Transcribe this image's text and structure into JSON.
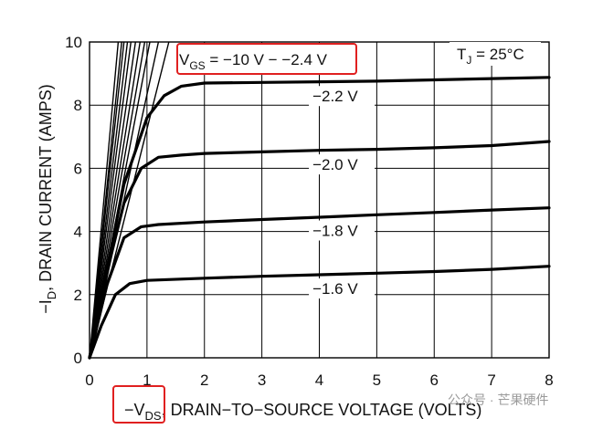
{
  "chart_data": {
    "type": "line",
    "title": "",
    "xlabel": "−V_DS, DRAIN−TO−SOURCE VOLTAGE (VOLTS)",
    "xlabel_parts": {
      "prefix": "−V",
      "sub": "DS",
      "suffix": ", DRAIN−TO−SOURCE VOLTAGE (VOLTS)"
    },
    "ylabel": "−I_D, DRAIN CURRENT (AMPS)",
    "ylabel_parts": {
      "prefix": "−I",
      "sub": "D",
      "suffix": ", DRAIN CURRENT (AMPS)"
    },
    "xlim": [
      0,
      8
    ],
    "ylim": [
      0,
      10
    ],
    "xticks": [
      "0",
      "1",
      "2",
      "3",
      "4",
      "5",
      "6",
      "7",
      "8"
    ],
    "yticks": [
      "0",
      "2",
      "4",
      "6",
      "8",
      "10"
    ],
    "grid": true,
    "annotations": {
      "vgs_range": {
        "prefix": "V",
        "sub": "GS",
        "suffix": " = −10 V − −2.4 V"
      },
      "temperature": {
        "prefix": "T",
        "sub": "J",
        "suffix": " = 25°C"
      }
    },
    "highlight_color": "#e02020",
    "series": [
      {
        "name": "−2.2 V",
        "x": [
          0,
          0.3,
          0.6,
          1.0,
          1.3,
          1.6,
          2.0,
          3.0,
          4.0,
          5.0,
          6.0,
          7.0,
          8.0
        ],
        "y": [
          0,
          2.8,
          5.5,
          7.6,
          8.3,
          8.6,
          8.7,
          8.72,
          8.74,
          8.76,
          8.8,
          8.84,
          8.88
        ]
      },
      {
        "name": "−2.0 V",
        "x": [
          0,
          0.3,
          0.6,
          0.9,
          1.2,
          1.6,
          2.0,
          3.0,
          4.0,
          5.0,
          6.0,
          7.0,
          8.0
        ],
        "y": [
          0,
          2.7,
          4.9,
          6.0,
          6.35,
          6.42,
          6.47,
          6.52,
          6.57,
          6.6,
          6.65,
          6.72,
          6.85
        ]
      },
      {
        "name": "−1.8 V",
        "x": [
          0,
          0.3,
          0.6,
          0.9,
          1.2,
          2.0,
          3.0,
          4.0,
          5.0,
          6.0,
          7.0,
          8.0
        ],
        "y": [
          0,
          2.3,
          3.8,
          4.15,
          4.22,
          4.3,
          4.38,
          4.45,
          4.53,
          4.6,
          4.68,
          4.75
        ]
      },
      {
        "name": "−1.6 V",
        "x": [
          0,
          0.2,
          0.45,
          0.7,
          1.0,
          2.0,
          3.0,
          4.0,
          5.0,
          6.0,
          7.0,
          8.0
        ],
        "y": [
          0,
          1.0,
          2.0,
          2.35,
          2.45,
          2.52,
          2.58,
          2.63,
          2.68,
          2.73,
          2.8,
          2.9
        ]
      },
      {
        "name": "",
        "x": [
          0,
          0.5
        ],
        "y": [
          0,
          10
        ]
      },
      {
        "name": "",
        "x": [
          0,
          0.56
        ],
        "y": [
          0,
          10
        ]
      },
      {
        "name": "",
        "x": [
          0,
          0.6
        ],
        "y": [
          0,
          10
        ]
      },
      {
        "name": "",
        "x": [
          0,
          0.66
        ],
        "y": [
          0,
          10
        ]
      },
      {
        "name": "",
        "x": [
          0,
          0.72
        ],
        "y": [
          0,
          10
        ]
      },
      {
        "name": "",
        "x": [
          0,
          0.8
        ],
        "y": [
          0,
          10
        ]
      },
      {
        "name": "",
        "x": [
          0,
          0.88
        ],
        "y": [
          0,
          10
        ]
      },
      {
        "name": "",
        "x": [
          0,
          0.96
        ],
        "y": [
          0,
          10
        ]
      },
      {
        "name": "",
        "x": [
          0,
          1.05
        ],
        "y": [
          0,
          10
        ]
      },
      {
        "name": "",
        "x": [
          0,
          1.2
        ],
        "y": [
          0,
          10
        ]
      },
      {
        "name": "",
        "x": [
          0,
          1.38
        ],
        "y": [
          0,
          10
        ]
      }
    ],
    "curve_labels": [
      "−2.2 V",
      "−2.0 V",
      "−1.8 V",
      "−1.6 V"
    ]
  },
  "watermark": "公众号 · 芒果硬件"
}
